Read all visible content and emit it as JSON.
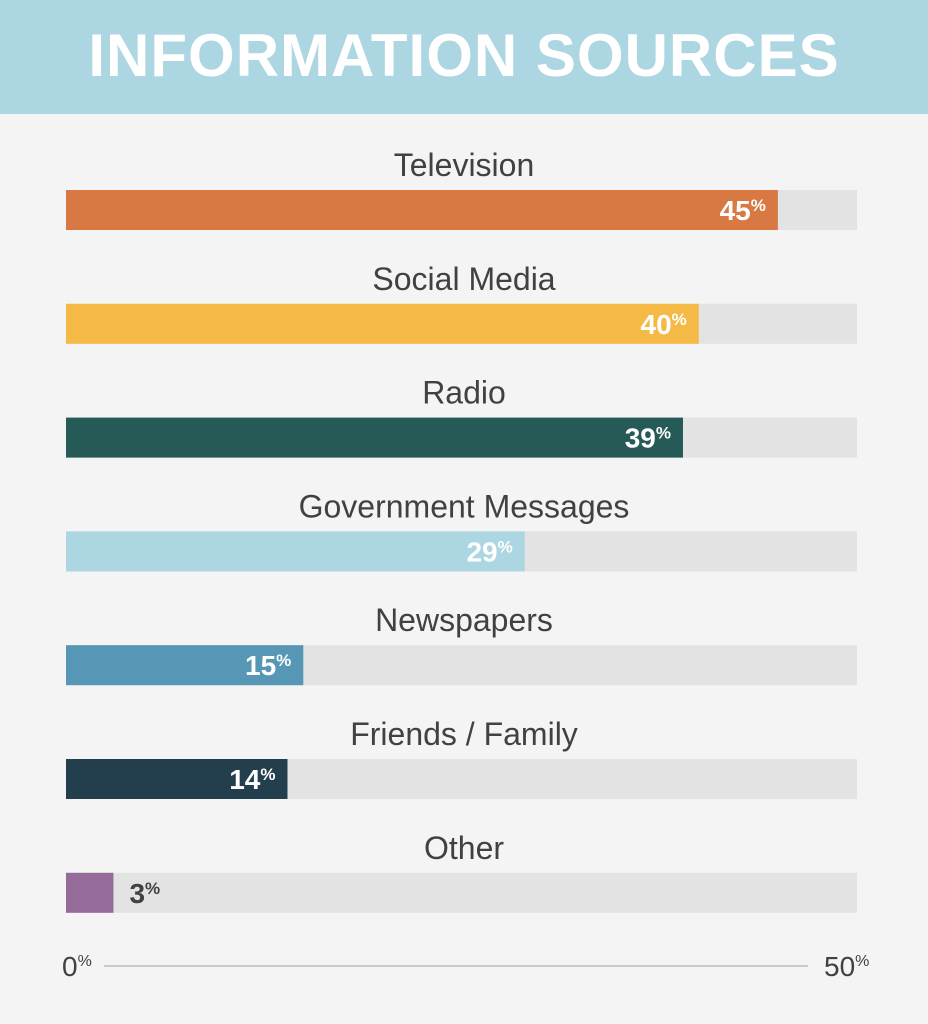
{
  "header": {
    "title": "INFORMATION SOURCES"
  },
  "chart_data": {
    "type": "bar",
    "orientation": "horizontal",
    "categories": [
      "Television",
      "Social Media",
      "Radio",
      "Government Messages",
      "Newspapers",
      "Friends / Family",
      "Other"
    ],
    "values": [
      45,
      40,
      39,
      29,
      15,
      14,
      3
    ],
    "value_suffix": "%",
    "colors": [
      "#d87843",
      "#f5ba45",
      "#265a56",
      "#acd6e2",
      "#5597b5",
      "#233f4d",
      "#956b9a"
    ],
    "value_label_colors": [
      "#ffffff",
      "#ffffff",
      "#ffffff",
      "#ffffff",
      "#ffffff",
      "#ffffff",
      "#414143"
    ],
    "track_color": "#e2e3e2",
    "xlim": [
      0,
      50
    ],
    "axis_labels": {
      "min": "0",
      "max": "50",
      "unit": "%"
    },
    "grid": false,
    "legend": "none"
  }
}
